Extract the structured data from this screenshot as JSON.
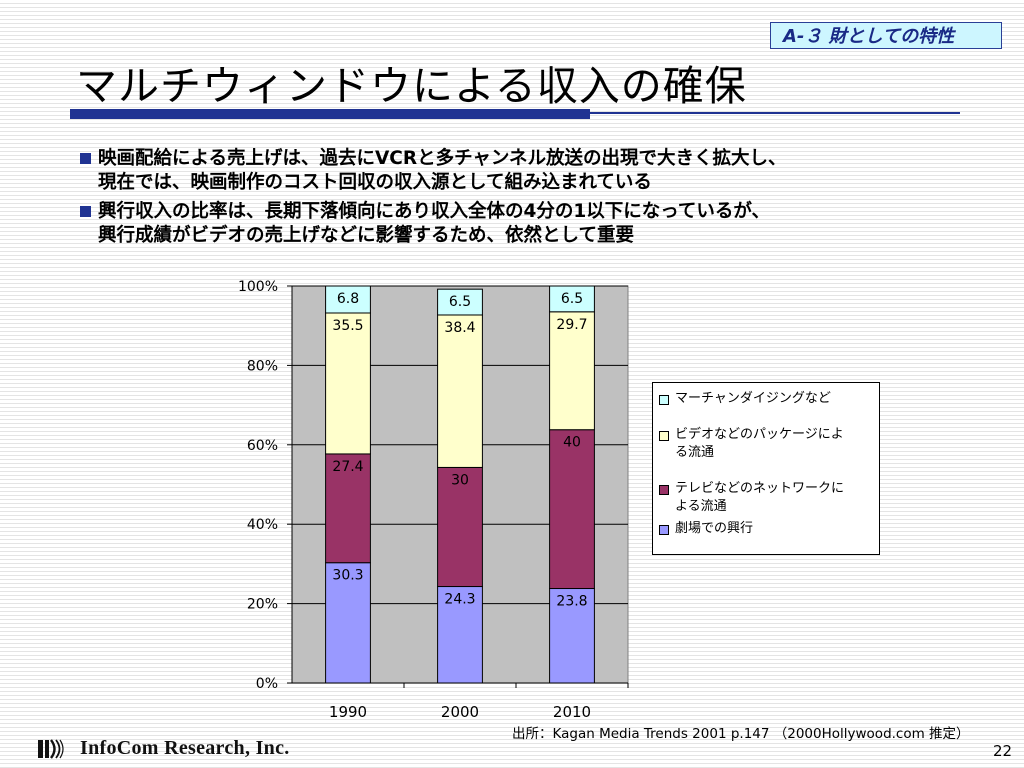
{
  "header": {
    "tag": "A-３ 財としての特性",
    "title": "マルチウィンドウによる収入の確保"
  },
  "bullets": [
    {
      "lines": [
        "映画配給による売上げは、過去にVCRと多チャンネル放送の出現で大きく拡大し、",
        "現在では、映画制作のコスト回収の収入源として組み込まれている"
      ]
    },
    {
      "lines": [
        "興行収入の比率は、長期下落傾向にあり収入全体の4分の1以下になっているが、",
        "興行成績がビデオの売上げなどに影響するため、依然として重要"
      ]
    }
  ],
  "chart_data": {
    "type": "bar",
    "stacked": true,
    "percent": true,
    "categories": [
      "1990",
      "2000",
      "2010"
    ],
    "series": [
      {
        "name": "劇場での興行",
        "color": "#9999ff",
        "values": [
          30.3,
          24.3,
          23.8
        ],
        "labels": [
          "30.3",
          "24.3",
          "23.8"
        ]
      },
      {
        "name": "テレビなどのネットワークによる流通",
        "color": "#993366",
        "values": [
          27.4,
          30,
          40
        ],
        "labels": [
          "27.4",
          "30",
          "40"
        ]
      },
      {
        "name": "ビデオなどのパッケージによる流通",
        "color": "#ffffcc",
        "values": [
          35.5,
          38.4,
          29.7
        ],
        "labels": [
          "35.5",
          "38.4",
          "29.7"
        ]
      },
      {
        "name": "マーチャンダイジングなど",
        "color": "#ccffff",
        "values": [
          6.8,
          6.5,
          6.5
        ],
        "labels": [
          "6.8",
          "6.5",
          "6.5"
        ]
      }
    ],
    "ylim": [
      0,
      100
    ],
    "yticks": [
      "0%",
      "20%",
      "40%",
      "60%",
      "80%",
      "100%"
    ],
    "plot_background": "#c0c0c0",
    "grid": true,
    "legend": {
      "position": "right",
      "items": [
        {
          "lines": [
            "マーチャンダイジングなど"
          ],
          "color": "#ccffff"
        },
        {
          "lines": [
            "ビデオなどのパッケージによ",
            "る流通"
          ],
          "color": "#ffffcc"
        },
        {
          "lines": [
            "テレビなどのネットワークに",
            "よる流通"
          ],
          "color": "#993366"
        },
        {
          "lines": [
            "劇場での興行"
          ],
          "color": "#9999ff"
        }
      ]
    }
  },
  "source": "出所：Kagan Media Trends 2001 p.147 （2000Hollywood.com 推定）",
  "footer": {
    "company": "InfoCom Research, Inc.",
    "page": "22"
  },
  "colors": {
    "accent": "#203392",
    "tag_bg": "#cdf6ff"
  }
}
